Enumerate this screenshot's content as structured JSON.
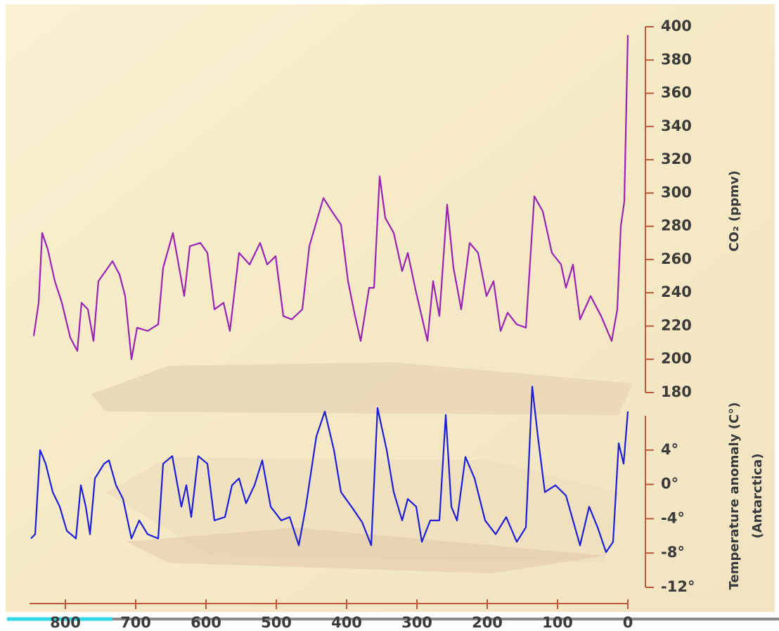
{
  "chart_data": {
    "type": "line",
    "ylabel": "CO₂ (ppmv)",
    "y2label": "Temperature anomaly (C°)",
    "y2sublabel": "(Antarctica)",
    "xlim": [
      851,
      0
    ],
    "xticks": [
      800,
      700,
      600,
      500,
      400,
      300,
      200,
      100,
      0
    ],
    "ylim": [
      180,
      400
    ],
    "yticks": [
      180,
      200,
      220,
      240,
      260,
      280,
      300,
      320,
      340,
      360,
      380,
      400
    ],
    "y2lim": [
      -12,
      8
    ],
    "y2ticks": [
      {
        "value": 4,
        "label": "4°"
      },
      {
        "value": 0,
        "label": "0°"
      },
      {
        "value": -4,
        "label": "-4°"
      },
      {
        "value": -8,
        "label": "-8°"
      },
      {
        "value": -12,
        "label": "-12°"
      }
    ],
    "axis_color": "#b85a3c",
    "series": [
      {
        "color": "#9a22b5",
        "axis": "y",
        "x": [
          845,
          838,
          833,
          825,
          815,
          805,
          793,
          783,
          777,
          768,
          760,
          753,
          743,
          733,
          723,
          715,
          706,
          698,
          683,
          668,
          661,
          647,
          631,
          623,
          608,
          598,
          588,
          575,
          566,
          553,
          538,
          523,
          513,
          501,
          490,
          478,
          463,
          453,
          433,
          421,
          408,
          398,
          388,
          380,
          368,
          361,
          353,
          345,
          333,
          321,
          313,
          301,
          285,
          277,
          268,
          257,
          248,
          237,
          225,
          213,
          201,
          191,
          181,
          171,
          158,
          145,
          133,
          121,
          108,
          95,
          88,
          78,
          68,
          53,
          38,
          23,
          15,
          10,
          5,
          0
        ],
        "values": [
          214,
          234,
          276,
          266,
          247,
          234,
          213,
          205,
          234,
          230,
          211,
          247,
          253,
          259,
          251,
          238,
          200,
          219,
          217,
          221,
          255,
          276,
          238,
          268,
          270,
          264,
          230,
          234,
          217,
          264,
          257,
          270,
          257,
          262,
          226,
          224,
          230,
          268,
          297,
          289,
          281,
          247,
          226,
          211,
          243,
          243,
          310,
          285,
          276,
          253,
          264,
          240,
          211,
          247,
          226,
          293,
          255,
          230,
          270,
          264,
          238,
          247,
          217,
          228,
          221,
          219,
          298,
          289,
          264,
          257,
          243,
          257,
          224,
          238,
          226,
          211,
          230,
          280,
          295,
          395
        ]
      },
      {
        "color": "#1c1ed8",
        "axis": "y2",
        "x": [
          849,
          843,
          836,
          828,
          818,
          808,
          798,
          785,
          778,
          771,
          765,
          758,
          745,
          738,
          728,
          718,
          706,
          695,
          683,
          668,
          661,
          648,
          635,
          628,
          621,
          611,
          598,
          588,
          573,
          563,
          553,
          543,
          531,
          520,
          508,
          493,
          481,
          468,
          458,
          443,
          431,
          418,
          408,
          393,
          378,
          365,
          356,
          343,
          333,
          321,
          313,
          301,
          293,
          281,
          268,
          259,
          251,
          243,
          231,
          218,
          203,
          188,
          173,
          158,
          145,
          136,
          128,
          118,
          103,
          88,
          78,
          68,
          55,
          43,
          31,
          21,
          13,
          6,
          0
        ],
        "values": [
          -6.3,
          -5.8,
          4.0,
          2.4,
          -0.9,
          -2.6,
          -5.4,
          -6.3,
          -0.1,
          -2.6,
          -5.8,
          0.7,
          2.4,
          2.8,
          -0.1,
          -1.7,
          -6.3,
          -4.2,
          -5.8,
          -6.3,
          2.4,
          3.3,
          -2.6,
          -0.1,
          -3.8,
          3.3,
          2.4,
          -4.2,
          -3.8,
          -0.1,
          0.7,
          -2.2,
          -0.1,
          2.8,
          -2.6,
          -4.2,
          -3.8,
          -7.1,
          -2.6,
          5.6,
          8.5,
          4.0,
          -0.9,
          -2.6,
          -4.4,
          -7.1,
          8.9,
          4.0,
          -0.9,
          -4.2,
          -1.7,
          -2.6,
          -6.7,
          -4.2,
          -4.2,
          8.1,
          -2.6,
          -4.2,
          3.2,
          0.7,
          -4.2,
          -5.8,
          -3.8,
          -6.7,
          -5.0,
          11.4,
          5.6,
          -0.9,
          -0.1,
          -1.3,
          -4.2,
          -7.1,
          -2.6,
          -5.0,
          -7.9,
          -6.7,
          4.8,
          2.4,
          8.5
        ]
      }
    ]
  }
}
